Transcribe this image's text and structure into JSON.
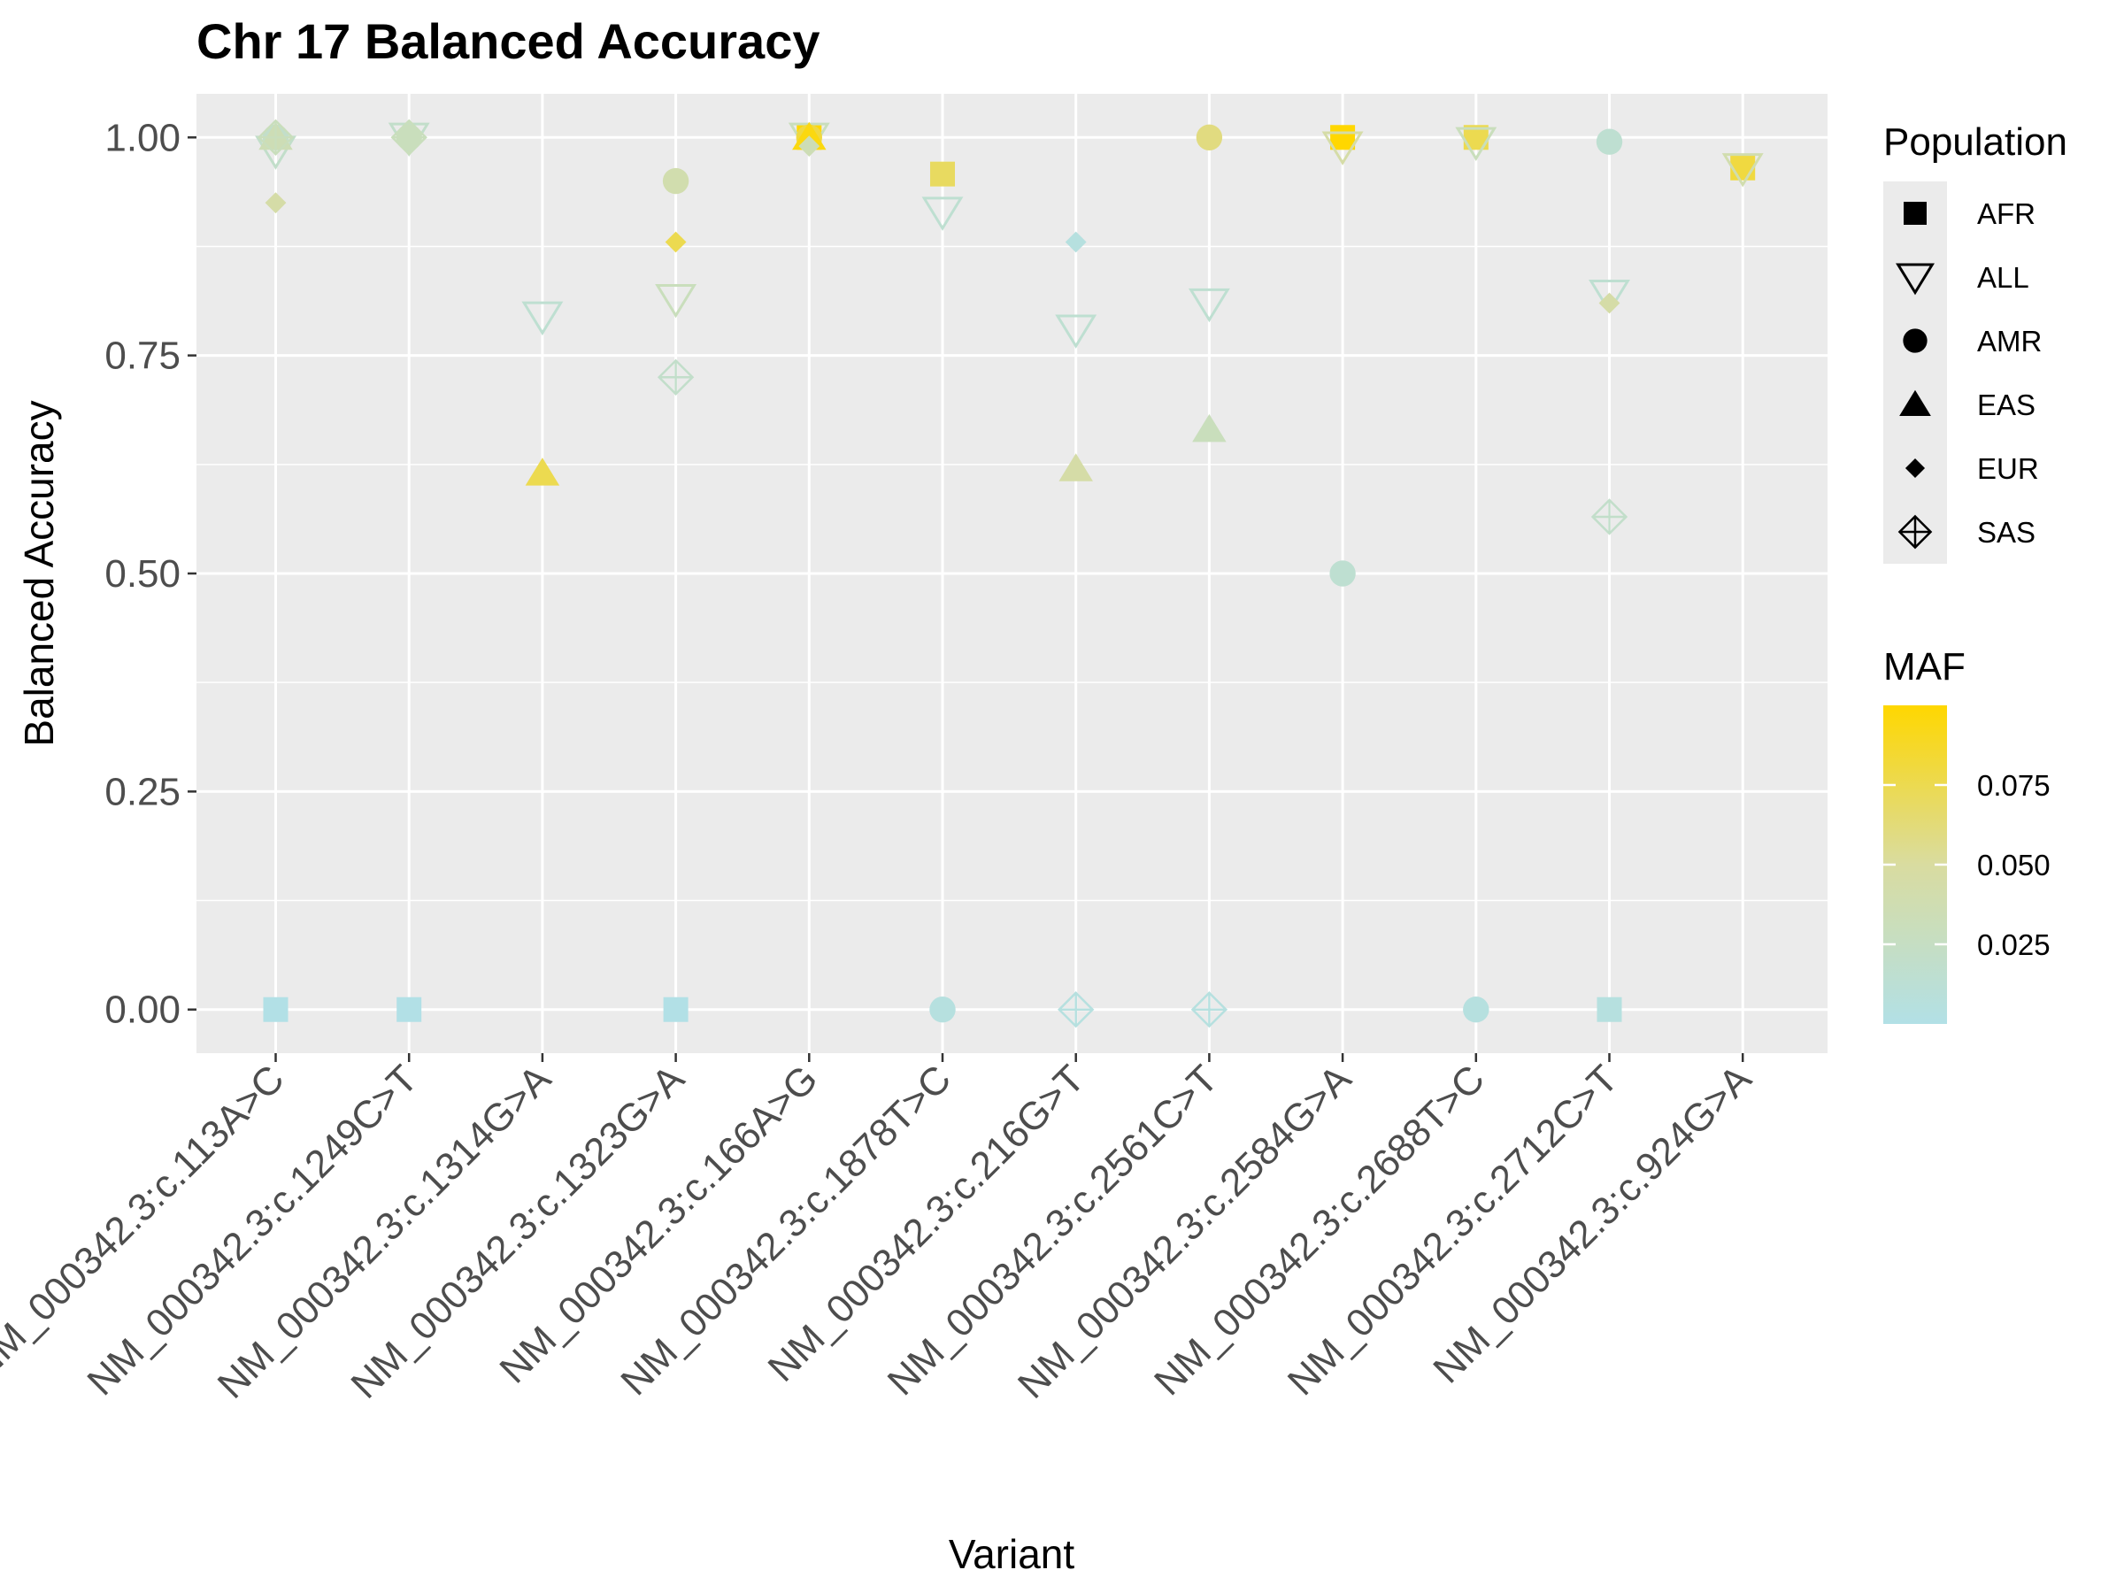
{
  "chart_data": {
    "type": "scatter",
    "title": "Chr 17 Balanced Accuracy",
    "xlabel": "Variant",
    "ylabel": "Balanced Accuracy",
    "ylim": [
      -0.05,
      1.05
    ],
    "yticks": [
      0,
      0.25,
      0.5,
      0.75,
      1
    ],
    "ytick_labels": [
      "0.00",
      "0.25",
      "0.50",
      "0.75",
      "1.00"
    ],
    "grid": true,
    "categories": [
      "NM_000342.3:c.113A>C",
      "NM_000342.3:c.1249C>T",
      "NM_000342.3:c.1314G>A",
      "NM_000342.3:c.1323G>A",
      "NM_000342.3:c.166A>G",
      "NM_000342.3:c.1878T>C",
      "NM_000342.3:c.216G>T",
      "NM_000342.3:c.2561C>T",
      "NM_000342.3:c.2584G>A",
      "NM_000342.3:c.2688T>C",
      "NM_000342.3:c.2712C>T",
      "NM_000342.3:c.924G>A"
    ],
    "shape_legend": {
      "title": "Population",
      "placement": "right",
      "entries": [
        {
          "label": "AFR",
          "shape": "square"
        },
        {
          "label": "ALL",
          "shape": "triangle-down-open"
        },
        {
          "label": "AMR",
          "shape": "circle"
        },
        {
          "label": "EAS",
          "shape": "triangle-up"
        },
        {
          "label": "EUR",
          "shape": "diamond"
        },
        {
          "label": "SAS",
          "shape": "diamond-plus-open"
        }
      ]
    },
    "color_legend": {
      "title": "MAF",
      "placement": "right",
      "range": [
        0,
        0.1
      ],
      "ticks": [
        0.025,
        0.05,
        0.075
      ],
      "tick_labels": [
        "0.025",
        "0.050",
        "0.075"
      ],
      "color_low": "#b2e0e6",
      "color_mid": "#d9dca0",
      "color_high": "#ffd700"
    },
    "points": [
      {
        "variant": "NM_000342.3:c.113A>C",
        "population": "AFR",
        "y": 0.0,
        "maf": 0.0
      },
      {
        "variant": "NM_000342.3:c.113A>C",
        "population": "ALL",
        "y": 0.985,
        "maf": 0.02
      },
      {
        "variant": "NM_000342.3:c.113A>C",
        "population": "AMR",
        "y": 1.0,
        "maf": 0.02
      },
      {
        "variant": "NM_000342.3:c.113A>C",
        "population": "EAS",
        "y": 1.0,
        "maf": 0.035
      },
      {
        "variant": "NM_000342.3:c.113A>C",
        "population": "EUR",
        "y": 0.925,
        "maf": 0.045
      },
      {
        "variant": "NM_000342.3:c.113A>C",
        "population": "SAS",
        "y": 1.0,
        "maf": 0.03
      },
      {
        "variant": "NM_000342.3:c.1249C>T",
        "population": "AFR",
        "y": 0.0,
        "maf": 0.0
      },
      {
        "variant": "NM_000342.3:c.1249C>T",
        "population": "ALL",
        "y": 1.0,
        "maf": 0.02
      },
      {
        "variant": "NM_000342.3:c.1249C>T",
        "population": "AMR",
        "y": 1.0,
        "maf": 0.03
      },
      {
        "variant": "NM_000342.3:c.1249C>T",
        "population": "EUR",
        "y": 1.0,
        "maf": 0.03
      },
      {
        "variant": "NM_000342.3:c.1249C>T",
        "population": "SAS",
        "y": 1.0,
        "maf": 0.03
      },
      {
        "variant": "NM_000342.3:c.1314G>A",
        "population": "ALL",
        "y": 0.795,
        "maf": 0.015
      },
      {
        "variant": "NM_000342.3:c.1314G>A",
        "population": "EAS",
        "y": 0.615,
        "maf": 0.075
      },
      {
        "variant": "NM_000342.3:c.1323G>A",
        "population": "AFR",
        "y": 0.0,
        "maf": 0.0
      },
      {
        "variant": "NM_000342.3:c.1323G>A",
        "population": "ALL",
        "y": 0.815,
        "maf": 0.03
      },
      {
        "variant": "NM_000342.3:c.1323G>A",
        "population": "AMR",
        "y": 0.95,
        "maf": 0.04
      },
      {
        "variant": "NM_000342.3:c.1323G>A",
        "population": "EUR",
        "y": 0.88,
        "maf": 0.075
      },
      {
        "variant": "NM_000342.3:c.1323G>A",
        "population": "SAS",
        "y": 0.725,
        "maf": 0.02
      },
      {
        "variant": "NM_000342.3:c.166A>G",
        "population": "AFR",
        "y": 1.0,
        "maf": 0.1
      },
      {
        "variant": "NM_000342.3:c.166A>G",
        "population": "ALL",
        "y": 1.0,
        "maf": 0.03
      },
      {
        "variant": "NM_000342.3:c.166A>G",
        "population": "AMR",
        "y": 1.0,
        "maf": 0.08
      },
      {
        "variant": "NM_000342.3:c.166A>G",
        "population": "EAS",
        "y": 1.0,
        "maf": 0.095
      },
      {
        "variant": "NM_000342.3:c.166A>G",
        "population": "EUR",
        "y": 0.99,
        "maf": 0.035
      },
      {
        "variant": "NM_000342.3:c.1878T>C",
        "population": "AFR",
        "y": 0.958,
        "maf": 0.07
      },
      {
        "variant": "NM_000342.3:c.1878T>C",
        "population": "ALL",
        "y": 0.915,
        "maf": 0.015
      },
      {
        "variant": "NM_000342.3:c.1878T>C",
        "population": "AMR",
        "y": 0.0,
        "maf": 0.005
      },
      {
        "variant": "NM_000342.3:c.216G>T",
        "population": "ALL",
        "y": 0.78,
        "maf": 0.015
      },
      {
        "variant": "NM_000342.3:c.216G>T",
        "population": "EAS",
        "y": 0.62,
        "maf": 0.045
      },
      {
        "variant": "NM_000342.3:c.216G>T",
        "population": "EUR",
        "y": 0.88,
        "maf": 0.005
      },
      {
        "variant": "NM_000342.3:c.216G>T",
        "population": "SAS",
        "y": 0.0,
        "maf": 0.005
      },
      {
        "variant": "NM_000342.3:c.2561C>T",
        "population": "ALL",
        "y": 0.81,
        "maf": 0.015
      },
      {
        "variant": "NM_000342.3:c.2561C>T",
        "population": "AMR",
        "y": 1.0,
        "maf": 0.06
      },
      {
        "variant": "NM_000342.3:c.2561C>T",
        "population": "EAS",
        "y": 0.665,
        "maf": 0.03
      },
      {
        "variant": "NM_000342.3:c.2561C>T",
        "population": "SAS",
        "y": 0.0,
        "maf": 0.005
      },
      {
        "variant": "NM_000342.3:c.2584G>A",
        "population": "AFR",
        "y": 1.0,
        "maf": 0.1
      },
      {
        "variant": "NM_000342.3:c.2584G>A",
        "population": "ALL",
        "y": 0.99,
        "maf": 0.045
      },
      {
        "variant": "NM_000342.3:c.2584G>A",
        "population": "AMR",
        "y": 0.5,
        "maf": 0.015
      },
      {
        "variant": "NM_000342.3:c.2688T>C",
        "population": "AFR",
        "y": 1.0,
        "maf": 0.075
      },
      {
        "variant": "NM_000342.3:c.2688T>C",
        "population": "ALL",
        "y": 0.995,
        "maf": 0.03
      },
      {
        "variant": "NM_000342.3:c.2688T>C",
        "population": "AMR",
        "y": 0.0,
        "maf": 0.005
      },
      {
        "variant": "NM_000342.3:c.2712C>T",
        "population": "AFR",
        "y": 0.0,
        "maf": 0.005
      },
      {
        "variant": "NM_000342.3:c.2712C>T",
        "population": "ALL",
        "y": 0.82,
        "maf": 0.015
      },
      {
        "variant": "NM_000342.3:c.2712C>T",
        "population": "AMR",
        "y": 0.995,
        "maf": 0.015
      },
      {
        "variant": "NM_000342.3:c.2712C>T",
        "population": "EUR",
        "y": 0.81,
        "maf": 0.045
      },
      {
        "variant": "NM_000342.3:c.2712C>T",
        "population": "SAS",
        "y": 0.565,
        "maf": 0.02
      },
      {
        "variant": "NM_000342.3:c.924G>A",
        "population": "AFR",
        "y": 0.965,
        "maf": 0.08
      },
      {
        "variant": "NM_000342.3:c.924G>A",
        "population": "ALL",
        "y": 0.965,
        "maf": 0.04
      }
    ]
  }
}
